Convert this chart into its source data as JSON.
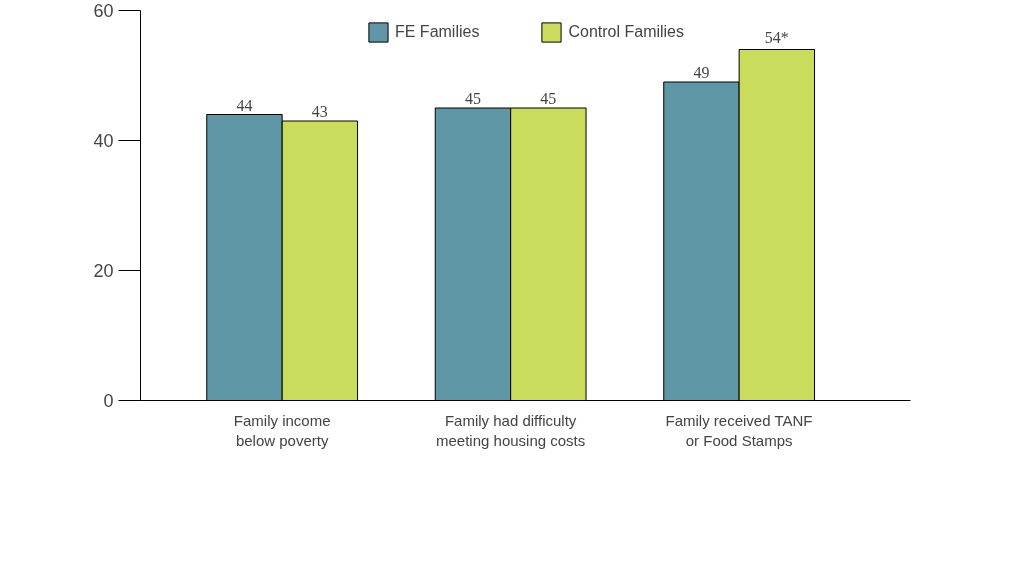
{
  "chart_data": {
    "type": "bar",
    "categories": [
      "Family income\nbelow poverty",
      "Family had difficulty\nmeeting housing costs",
      "Family received TANF\nor Food Stamps"
    ],
    "series": [
      {
        "name": "FE Families",
        "color": "#5f97a6",
        "values": [
          44,
          45,
          49
        ],
        "value_labels": [
          "44",
          "45",
          "49"
        ]
      },
      {
        "name": "Control Families",
        "color": "#c9dc5c",
        "values": [
          43,
          45,
          54
        ],
        "value_labels": [
          "43",
          "45",
          "54*"
        ]
      }
    ],
    "ylim": [
      0,
      60
    ],
    "yticks": [
      0,
      20,
      40,
      60
    ],
    "grid": false,
    "legend": "top"
  }
}
